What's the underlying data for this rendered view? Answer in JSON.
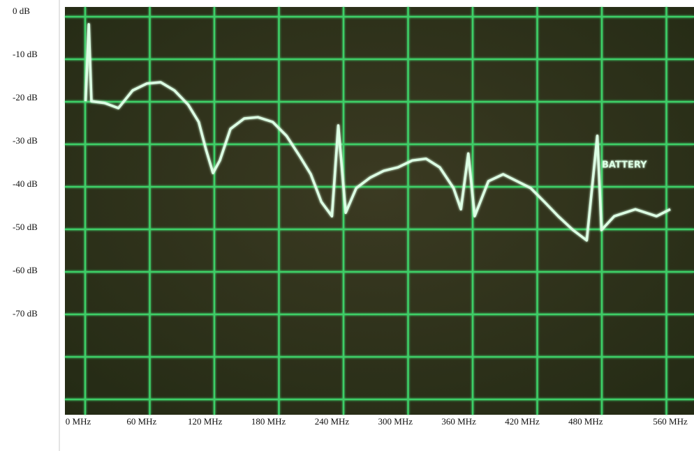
{
  "chart_data": {
    "type": "line",
    "x": [
      7,
      10,
      12.5,
      25,
      38,
      51.5,
      65,
      78,
      91,
      104,
      114,
      121,
      127.5,
      134,
      144,
      157,
      170,
      184,
      197,
      210,
      220,
      230,
      240,
      246,
      253,
      263,
      276,
      289,
      302.5,
      316,
      329,
      342,
      355,
      362,
      369,
      375,
      388,
      402,
      415,
      428,
      441,
      454,
      468,
      481,
      491,
      495,
      507,
      527,
      547,
      560
    ],
    "series": [
      {
        "color": "#dcffe4",
        "values": [
          -20.2,
          -2.4,
          -20.2,
          -20.6,
          -21.8,
          -17.7,
          -16.1,
          -15.8,
          -17.7,
          -21,
          -25,
          -31.5,
          -36.8,
          -33.9,
          -26.6,
          -24.2,
          -23.9,
          -25,
          -28.2,
          -33.1,
          -37.1,
          -43.5,
          -46.8,
          -25.8,
          -46,
          -40.3,
          -37.9,
          -36.3,
          -35.5,
          -33.9,
          -33.5,
          -35.5,
          -40.3,
          -45.2,
          -32.3,
          -46.8,
          -38.7,
          -37.1,
          -38.7,
          -40.3,
          -43.5,
          -46.8,
          -50,
          -52.4,
          -28.2,
          -50,
          -46.8,
          -45.2,
          -46.8,
          -45.2
        ]
      }
    ],
    "annotation": "BATTERY",
    "xlim": [
      0,
      560
    ],
    "xticks": [
      {
        "value": 0,
        "label": "0 MHz"
      },
      {
        "value": 60,
        "label": "60 MHz"
      },
      {
        "value": 120,
        "label": "120 MHz"
      },
      {
        "value": 180,
        "label": "180 MHz"
      },
      {
        "value": 240,
        "label": "240 MHz"
      },
      {
        "value": 300,
        "label": "300 MHz"
      },
      {
        "value": 360,
        "label": "360 MHz"
      },
      {
        "value": 420,
        "label": "420 MHz"
      },
      {
        "value": 480,
        "label": "480 MHz"
      },
      {
        "value": 560,
        "label": "560 MHz"
      }
    ],
    "ylim": [
      -90,
      0
    ],
    "yticks": [
      {
        "value": 0,
        "label": "0 dB"
      },
      {
        "value": -10,
        "label": "-10 dB"
      },
      {
        "value": -20,
        "label": "-20 dB"
      },
      {
        "value": -30,
        "label": "-30 dB"
      },
      {
        "value": -40,
        "label": "-40 dB"
      },
      {
        "value": -50,
        "label": "-50 dB"
      },
      {
        "value": -60,
        "label": "-60 dB"
      },
      {
        "value": -70,
        "label": "-70 dB"
      }
    ]
  }
}
